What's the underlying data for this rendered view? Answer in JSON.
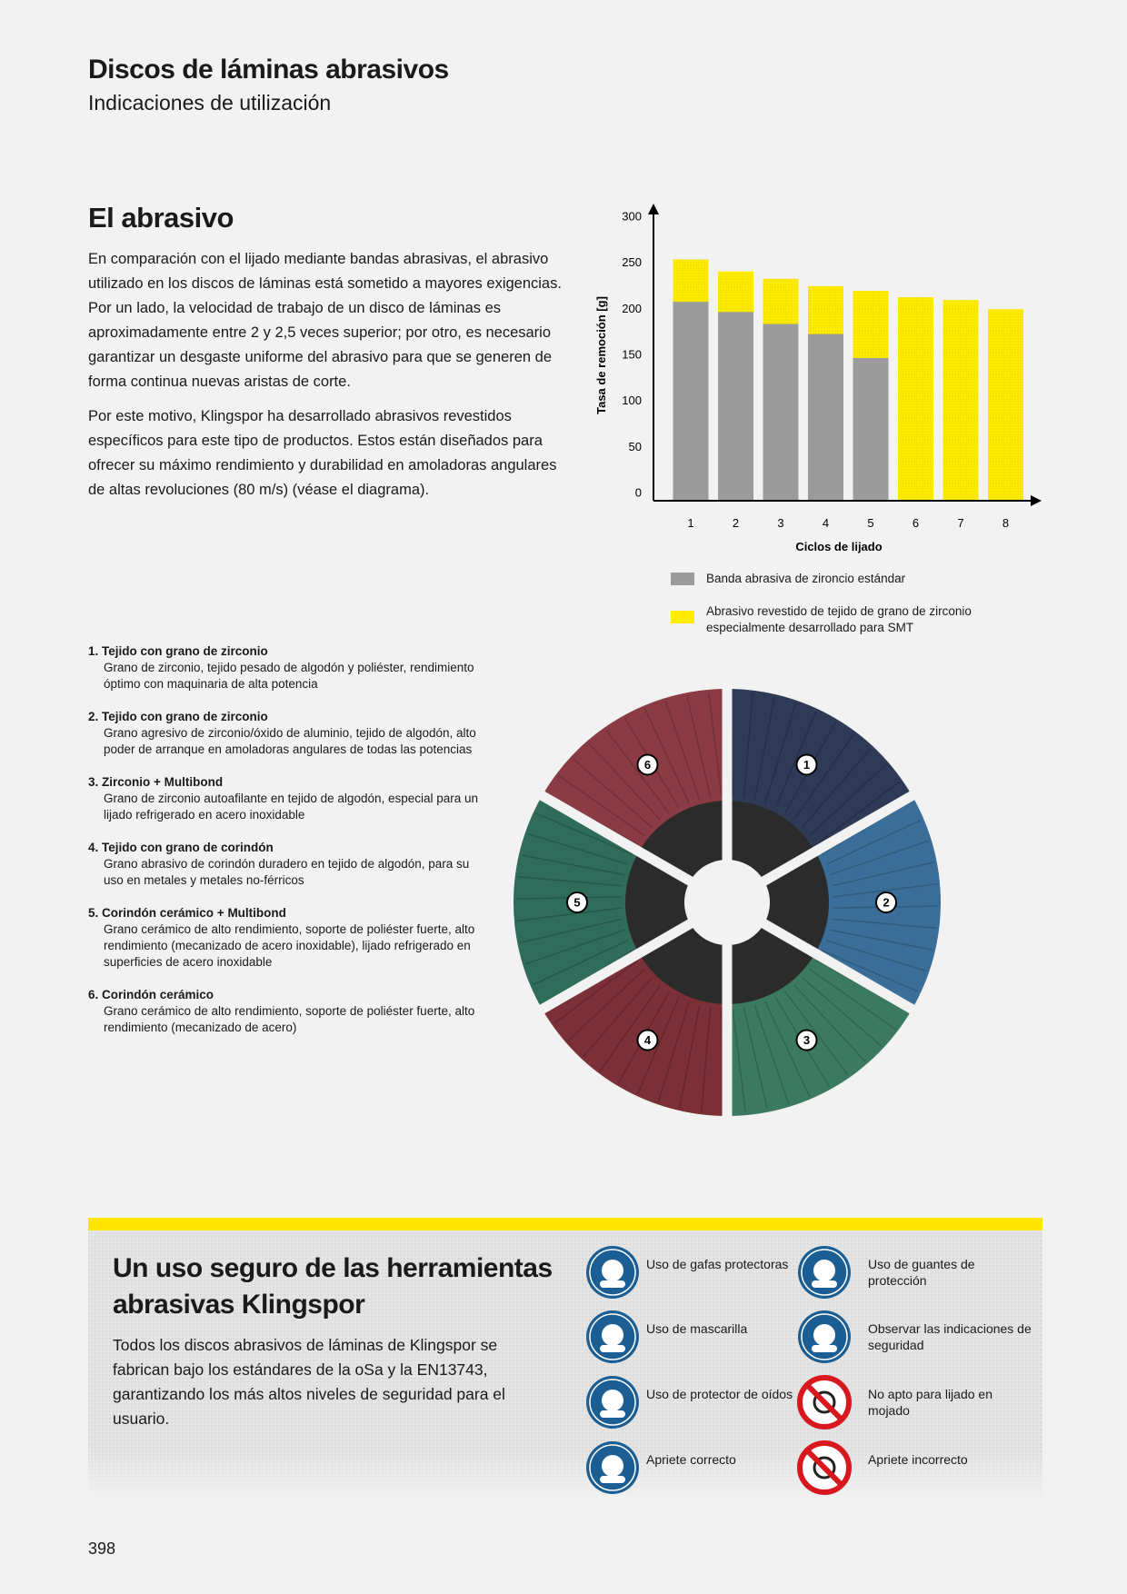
{
  "header": {
    "title": "Discos de láminas abrasivos",
    "subtitle": "Indicaciones de utilización"
  },
  "intro": {
    "title": "El abrasivo",
    "paragraphs": [
      "En comparación con el lijado mediante bandas abrasivas, el abrasivo utilizado en los discos de láminas está sometido a mayores exigencias. Por un lado, la velocidad de trabajo de un disco de láminas es aproximadamente entre 2 y 2,5 veces superior; por otro, es necesario garantizar un desgaste uniforme del abrasivo para que se generen de forma continua nuevas aristas de corte.",
      "Por este motivo, Klingspor ha desarrollado abrasivos revestidos específicos para este tipo de productos. Estos están diseñados para ofrecer su máximo rendimiento y durabilidad en amoladoras angulares de altas revoluciones (80 m/s) (véase el diagrama)."
    ]
  },
  "chart_data": {
    "type": "bar",
    "xlabel": "Ciclos de lijado",
    "ylabel": "Tasa de remoción [g]",
    "categories": [
      "1",
      "2",
      "3",
      "4",
      "5",
      "6",
      "7",
      "8"
    ],
    "series": [
      {
        "name": "Banda abrasiva de zironcio estándar",
        "color": "#9b9b9b",
        "values": [
          213,
          202,
          189,
          178,
          152,
          null,
          null,
          null
        ]
      },
      {
        "name": "Abrasivo revestido de tejido de grano de zirconio especialmente desarrollado para SMT",
        "color": "#ffec00",
        "values": [
          259,
          246,
          238,
          230,
          225,
          218,
          215,
          205
        ]
      }
    ],
    "ylim": [
      0,
      300
    ],
    "yticks": [
      0,
      50,
      100,
      150,
      200,
      250,
      300
    ],
    "grid": false
  },
  "products": {
    "items": [
      {
        "number": "1.",
        "title": "Tejido con grano de zirconio",
        "description": "Grano de zirconio, tejido pesado de algodón y poliéster, rendimiento óptimo con maquinaria de alta potencia"
      },
      {
        "number": "2.",
        "title": "Tejido con grano de zirconio",
        "description": "Grano agresivo de zirconio/óxido de aluminio, tejido de algodón, alto poder de arranque en amoladoras angulares de todas las potencias"
      },
      {
        "number": "3.",
        "title": "Zirconio + Multibond",
        "description": "Grano de zirconio autoafilante en tejido de algodón, especial para un lijado refrigerado en acero inoxidable"
      },
      {
        "number": "4.",
        "title": "Tejido con grano de corindón",
        "description": "Grano abrasivo de corindón duradero en tejido de algodón, para su uso en metales y metales no-férricos"
      },
      {
        "number": "5.",
        "title": "Corindón cerámico + Multibond",
        "description": "Grano cerámico de alto rendimiento, soporte de poliéster fuerte, alto rendimiento (mecanizado de acero inoxidable), lijado refrigerado en superficies de acero inoxidable"
      },
      {
        "number": "6.",
        "title": "Corindón cerámico",
        "description": "Grano cerámico de alto rendimiento, soporte de poliéster fuerte, alto rendimiento (mecanizado de acero)"
      }
    ]
  },
  "wheel": {
    "labels": [
      "1",
      "2",
      "3",
      "4",
      "5",
      "6"
    ]
  },
  "safety": {
    "title": "Un uso seguro de las herramientas abrasivas Klingspor",
    "text": "Todos los discos abrasivos de láminas de Klingspor se fabrican bajo los estándares de la oSa y la EN13743, garantizando los más altos niveles de seguridad para el usuario.",
    "icons": [
      {
        "label": "Uso de gafas protectoras"
      },
      {
        "label": "Uso de guantes de protección"
      },
      {
        "label": "Uso de mascarilla"
      },
      {
        "label": "Observar las indicaciones de seguridad"
      },
      {
        "label": "Uso de protector de oídos"
      },
      {
        "label": "No apto para lijado en mojado"
      },
      {
        "label": "Apriete correcto"
      },
      {
        "label": "Apriete incorrecto"
      }
    ]
  },
  "page_number": "398"
}
